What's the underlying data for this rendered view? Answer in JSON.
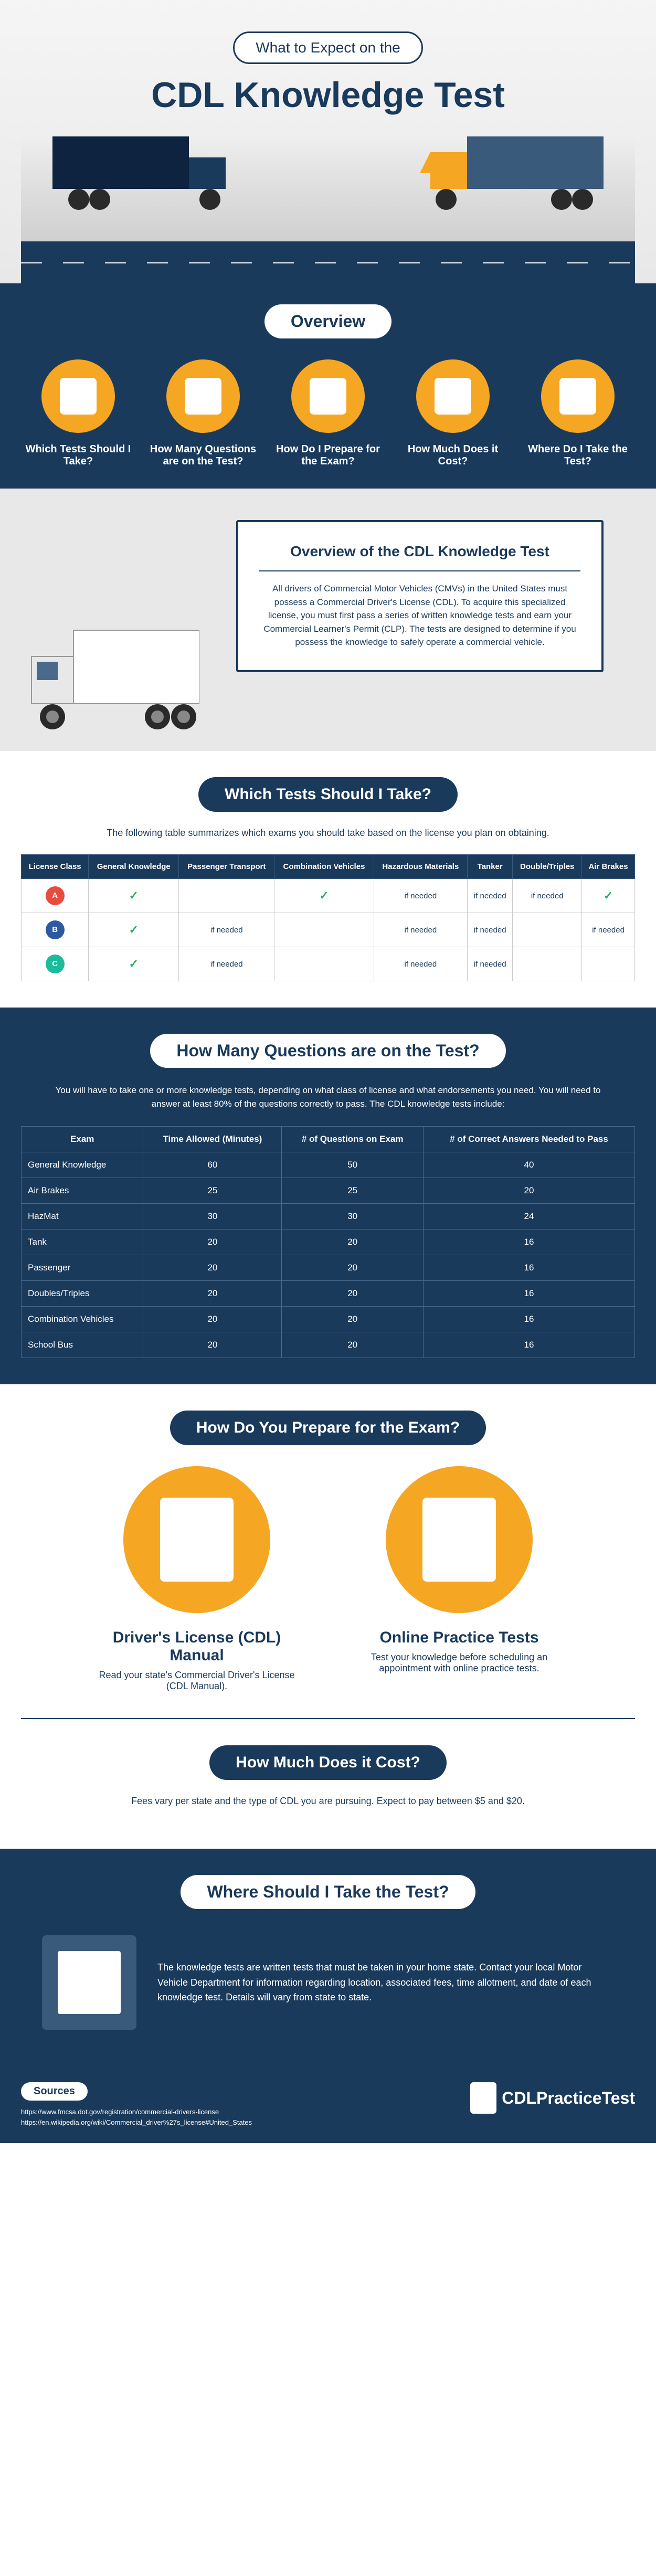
{
  "hero": {
    "pretitle": "What to Expect on the",
    "title": "CDL Knowledge Test"
  },
  "overview": {
    "heading": "Overview",
    "items": [
      {
        "label": "Which Tests Should I Take?",
        "icon": "document-icon"
      },
      {
        "label": "How Many Questions are on the Test?",
        "icon": "questions-icon"
      },
      {
        "label": "How Do I Prepare for the Exam?",
        "icon": "checklist-icon"
      },
      {
        "label": "How Much Does it Cost?",
        "icon": "money-icon"
      },
      {
        "label": "Where Do I Take the Test?",
        "icon": "map-icon"
      }
    ]
  },
  "billboard": {
    "title": "Overview of the CDL Knowledge Test",
    "text": "All drivers of Commercial Motor Vehicles (CMVs) in the United States must possess a Commercial Driver's License (CDL). To acquire this specialized license, you must first pass a series of written knowledge tests and earn your Commercial Learner's Permit (CLP).  The tests are designed to determine if you possess the knowledge to safely operate a commercial vehicle."
  },
  "tests_table": {
    "heading": "Which Tests Should I Take?",
    "desc": "The following table summarizes which exams you should take based on the license you plan on obtaining.",
    "columns": [
      "License Class",
      "General Knowledge",
      "Passenger Transport",
      "Combination Vehicles",
      "Hazardous Materials",
      "Tanker",
      "Double/Triples",
      "Air Brakes"
    ],
    "rows": [
      {
        "class": "A",
        "color": "#e74c3c",
        "cells": [
          "check",
          "",
          "check",
          "if needed",
          "if needed",
          "if needed",
          "check"
        ]
      },
      {
        "class": "B",
        "color": "#2c5aa0",
        "cells": [
          "check",
          "if needed",
          "",
          "if needed",
          "if needed",
          "",
          "if needed"
        ]
      },
      {
        "class": "C",
        "color": "#1abc9c",
        "cells": [
          "check",
          "if needed",
          "",
          "if needed",
          "if needed",
          "",
          ""
        ]
      }
    ]
  },
  "questions_table": {
    "heading": "How Many Questions are on the Test?",
    "desc": "You will have to take one or more knowledge tests, depending on what class of license and what endorsements you need.  You will need to answer at least 80% of the questions correctly to pass. The CDL knowledge tests include:",
    "columns": [
      "Exam",
      "Time Allowed (Minutes)",
      "# of Questions on Exam",
      "# of Correct Answers Needed to Pass"
    ],
    "rows": [
      [
        "General Knowledge",
        "60",
        "50",
        "40"
      ],
      [
        "Air Brakes",
        "25",
        "25",
        "20"
      ],
      [
        "HazMat",
        "30",
        "30",
        "24"
      ],
      [
        "Tank",
        "20",
        "20",
        "16"
      ],
      [
        "Passenger",
        "20",
        "20",
        "16"
      ],
      [
        "Doubles/Triples",
        "20",
        "20",
        "16"
      ],
      [
        "Combination Vehicles",
        "20",
        "20",
        "16"
      ],
      [
        "School Bus",
        "20",
        "20",
        "16"
      ]
    ]
  },
  "prepare": {
    "heading": "How Do You Prepare for the Exam?",
    "items": [
      {
        "title": "Driver's License (CDL) Manual",
        "text": "Read your state's Commercial Driver's License (CDL Manual)."
      },
      {
        "title": "Online Practice Tests",
        "text": "Test your knowledge before scheduling an appointment with online practice tests."
      }
    ]
  },
  "cost": {
    "heading": "How Much Does it Cost?",
    "text": "Fees vary per state and the type of CDL you are pursuing.  Expect to pay between $5 and $20."
  },
  "where": {
    "heading": "Where Should I Take the Test?",
    "text": "The knowledge tests are written tests that must be taken in your home state.  Contact your local Motor Vehicle Department for information regarding location, associated fees, time allotment, and date of each knowledge test.  Details will vary from state to state."
  },
  "footer": {
    "sources_label": "Sources",
    "sources": [
      "https://www.fmcsa.dot.gov/registration/commercial-drivers-license",
      "https://en.wikipedia.org/wiki/Commercial_driver%27s_license#United_States"
    ],
    "logo_text": "CDLPracticeTest"
  },
  "colors": {
    "primary": "#1a3a5c",
    "accent": "#f5a623",
    "bg_light": "#e8e8e8",
    "check_green": "#27ae60"
  }
}
